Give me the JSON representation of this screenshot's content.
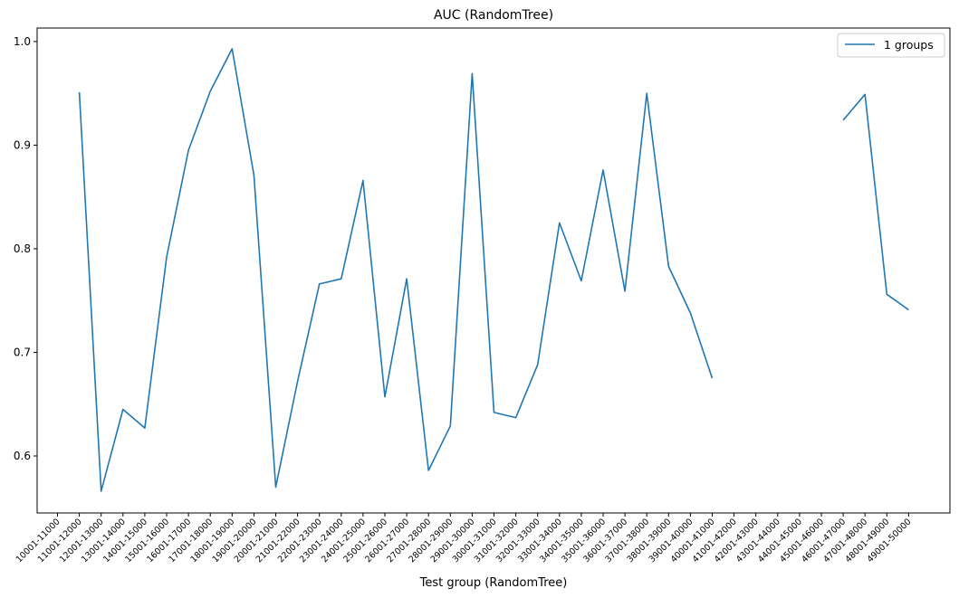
{
  "chart_data": {
    "type": "line",
    "title": "AUC (RandomTree)",
    "xlabel": "Test group (RandomTree)",
    "ylabel": "",
    "ylim": [
      0.545,
      1.013
    ],
    "yticks": [
      0.6,
      0.7,
      0.8,
      0.9,
      1.0
    ],
    "ytick_labels": [
      "0.6",
      "0.7",
      "0.8",
      "0.9",
      "1.0"
    ],
    "grid": false,
    "legend_position": "upper right",
    "line_color": "#1f77b4",
    "categories": [
      "10001-11000",
      "11001-12000",
      "12001-13000",
      "13001-14000",
      "14001-15000",
      "15001-16000",
      "16001-17000",
      "17001-18000",
      "18001-19000",
      "19001-20000",
      "20001-21000",
      "21001-22000",
      "22001-23000",
      "23001-24000",
      "24001-25000",
      "25001-26000",
      "26001-27000",
      "27001-28000",
      "28001-29000",
      "29001-30000",
      "30001-31000",
      "31001-32000",
      "32001-33000",
      "33001-34000",
      "34001-35000",
      "35001-36000",
      "36001-37000",
      "37001-38000",
      "38001-39000",
      "39001-40000",
      "40001-41000",
      "41001-42000",
      "42001-43000",
      "43001-44000",
      "44001-45000",
      "45001-46000",
      "46001-47000",
      "47001-48000",
      "48001-49000",
      "49001-50000"
    ],
    "series": [
      {
        "name": "1 groups",
        "values": [
          null,
          0.951,
          0.566,
          0.645,
          0.627,
          0.792,
          0.895,
          0.952,
          0.993,
          0.871,
          0.57,
          0.672,
          0.766,
          0.771,
          0.866,
          0.657,
          0.771,
          0.586,
          0.629,
          0.969,
          0.642,
          0.637,
          0.688,
          0.825,
          0.769,
          0.876,
          0.759,
          0.95,
          0.783,
          0.738,
          0.675,
          null,
          null,
          null,
          null,
          null,
          0.924,
          0.949,
          0.756,
          0.741
        ]
      }
    ]
  }
}
